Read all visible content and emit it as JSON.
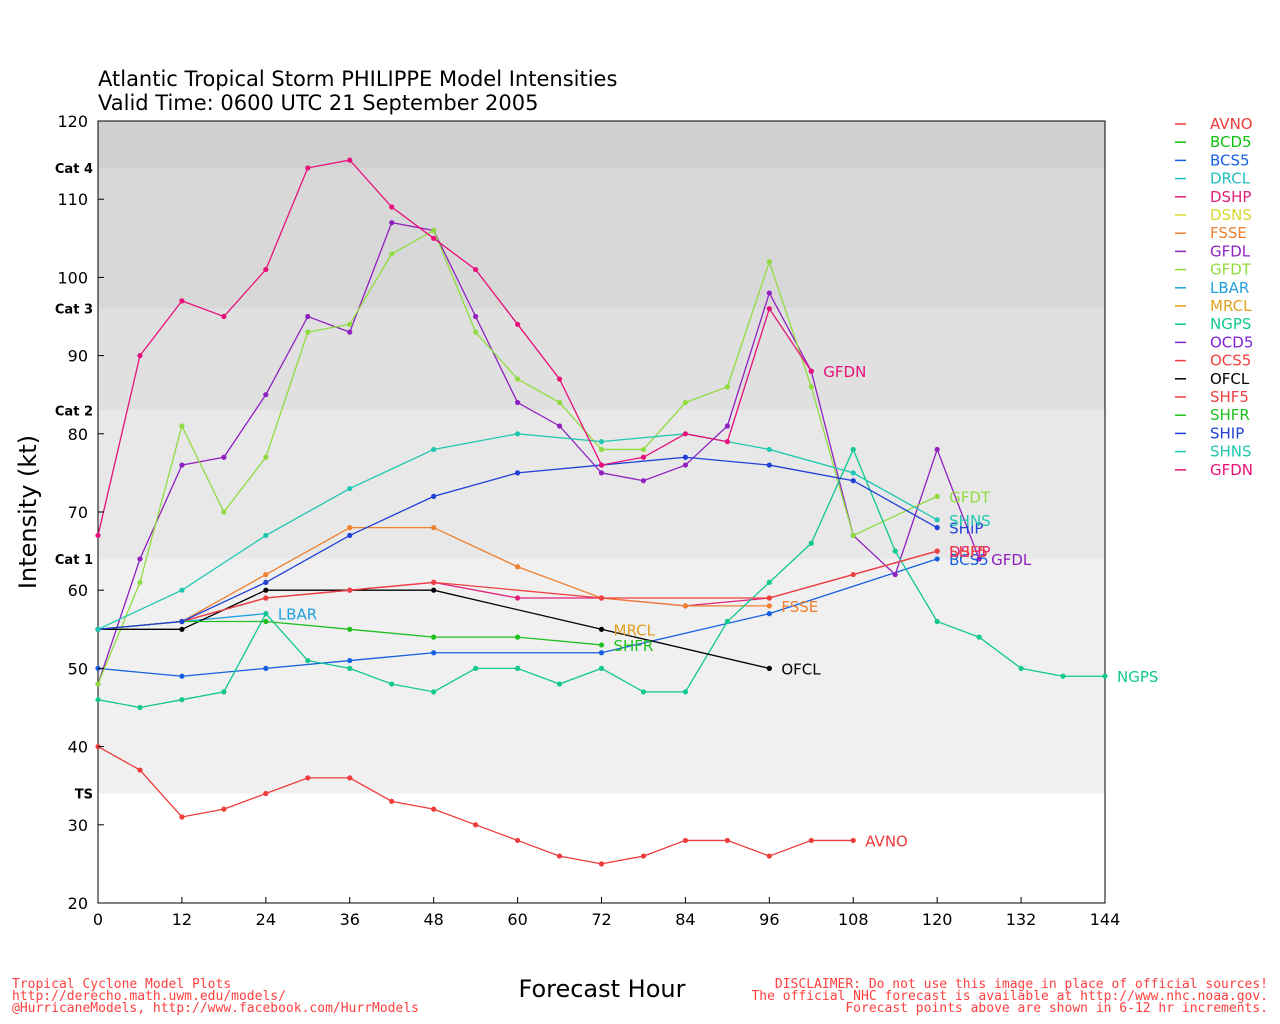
{
  "chart_data": {
    "type": "line",
    "title": "Atlantic Tropical Storm PHILIPPE Model Intensities",
    "subtitle": "Valid Time: 0600 UTC 21 September 2005",
    "xlabel": "Forecast Hour",
    "ylabel": "Intensity (kt)",
    "xlim": [
      0,
      144
    ],
    "ylim": [
      20,
      120
    ],
    "xticks": [
      "0",
      "12",
      "24",
      "36",
      "48",
      "60",
      "72",
      "84",
      "96",
      "108",
      "120",
      "132",
      "144"
    ],
    "yticks": [
      "20",
      "30",
      "40",
      "50",
      "60",
      "70",
      "80",
      "90",
      "100",
      "110",
      "120"
    ],
    "bands": [
      {
        "label": "TS",
        "from": 34,
        "to": 64,
        "color": "#f0f0f0"
      },
      {
        "label": "Cat 1",
        "from": 64,
        "to": 83,
        "color": "#e8e8e8"
      },
      {
        "label": "Cat 2",
        "from": 83,
        "to": 96,
        "color": "#e0e0e0"
      },
      {
        "label": "Cat 3",
        "from": 96,
        "to": 114,
        "color": "#d8d8d8"
      },
      {
        "label": "Cat 4",
        "from": 114,
        "to": 120,
        "color": "#d0d0d0"
      }
    ],
    "legend_position": "right",
    "series": [
      {
        "name": "AVNO",
        "color": "#ee3b3b",
        "end_label": "AVNO",
        "x": [
          0,
          6,
          12,
          18,
          24,
          30,
          36,
          42,
          48,
          54,
          60,
          66,
          72,
          78,
          84,
          90,
          96,
          102,
          108
        ],
        "y": [
          40,
          37,
          31,
          32,
          34,
          36,
          36,
          33,
          32,
          30,
          28,
          26,
          25,
          26,
          28,
          28,
          26,
          28,
          28
        ]
      },
      {
        "name": "BCD5",
        "color": "#10c010",
        "end_label": "",
        "x": [],
        "y": []
      },
      {
        "name": "BCS5",
        "color": "#1560e0",
        "end_label": "BCS5",
        "x": [
          0,
          12,
          24,
          36,
          48,
          72,
          96,
          120
        ],
        "y": [
          50,
          49,
          50,
          51,
          52,
          52,
          57,
          64
        ]
      },
      {
        "name": "DRCL",
        "color": "#20c0c0",
        "end_label": "",
        "x": [],
        "y": []
      },
      {
        "name": "DSHP",
        "color": "#e0207a",
        "end_label": "DSHP",
        "x": [
          0,
          12,
          24,
          36,
          48,
          60,
          72,
          84,
          96,
          120
        ],
        "y": [
          55,
          56,
          59,
          60,
          61,
          59,
          59,
          58,
          59,
          65
        ]
      },
      {
        "name": "DSNS",
        "color": "#d8d830",
        "end_label": "",
        "x": [],
        "y": []
      },
      {
        "name": "FSSE",
        "color": "#ee8030",
        "end_label": "FSSE",
        "x": [
          12,
          24,
          36,
          48,
          60,
          72,
          84,
          96
        ],
        "y": [
          56,
          62,
          68,
          68,
          63,
          59,
          58,
          58
        ]
      },
      {
        "name": "GFDL",
        "color": "#9020c0",
        "end_label": "GFDL",
        "x": [
          0,
          6,
          12,
          18,
          24,
          30,
          36,
          42,
          48,
          54,
          60,
          66,
          72,
          78,
          84,
          90,
          96,
          102,
          108,
          114,
          120,
          126
        ],
        "y": [
          48,
          64,
          76,
          77,
          85,
          95,
          93,
          107,
          106,
          95,
          84,
          81,
          75,
          74,
          76,
          81,
          98,
          88,
          67,
          62,
          78,
          64
        ]
      },
      {
        "name": "GFDT",
        "color": "#90dc40",
        "end_label": "GFDT",
        "x": [
          0,
          6,
          12,
          18,
          24,
          30,
          36,
          42,
          48,
          54,
          60,
          66,
          72,
          78,
          84,
          90,
          96,
          102,
          108,
          120
        ],
        "y": [
          48,
          61,
          81,
          70,
          77,
          93,
          94,
          103,
          106,
          93,
          87,
          84,
          78,
          78,
          84,
          86,
          102,
          86,
          67,
          72
        ]
      },
      {
        "name": "LBAR",
        "color": "#20a0e0",
        "end_label": "LBAR",
        "x": [
          0,
          12,
          24
        ],
        "y": [
          55,
          56,
          57
        ]
      },
      {
        "name": "MRCL",
        "color": "#e0a020",
        "end_label": "MRCL",
        "x": [
          72
        ],
        "y": [
          55
        ]
      },
      {
        "name": "NGPS",
        "color": "#10c890",
        "end_label": "NGPS",
        "x": [
          0,
          6,
          12,
          18,
          24,
          30,
          36,
          42,
          48,
          54,
          60,
          66,
          72,
          78,
          84,
          90,
          96,
          102,
          108,
          114,
          120,
          126,
          132,
          138,
          144
        ],
        "y": [
          46,
          45,
          46,
          47,
          57,
          51,
          50,
          48,
          47,
          50,
          50,
          48,
          50,
          47,
          47,
          56,
          61,
          66,
          78,
          65,
          56,
          54,
          50,
          49,
          49
        ]
      },
      {
        "name": "OCD5",
        "color": "#8020d0",
        "end_label": "",
        "x": [],
        "y": []
      },
      {
        "name": "OCS5",
        "color": "#ee4040",
        "end_label": "OCS5",
        "x": [],
        "y": []
      },
      {
        "name": "OFCL",
        "color": "#000000",
        "end_label": "OFCL",
        "x": [
          0,
          12,
          24,
          48,
          72,
          96
        ],
        "y": [
          55,
          55,
          60,
          60,
          55,
          50
        ]
      },
      {
        "name": "SHF5",
        "color": "#ee4040",
        "end_label": "SHF5",
        "x": [
          0,
          12,
          24,
          36,
          48,
          72,
          96,
          108,
          120
        ],
        "y": [
          55,
          56,
          59,
          60,
          61,
          59,
          59,
          62,
          65
        ]
      },
      {
        "name": "SHFR",
        "color": "#20c020",
        "end_label": "SHFR",
        "x": [
          0,
          12,
          24,
          36,
          48,
          60,
          72
        ],
        "y": [
          55,
          56,
          56,
          55,
          54,
          54,
          53
        ]
      },
      {
        "name": "SHIP",
        "color": "#2040d8",
        "end_label": "SHIP",
        "x": [
          0,
          12,
          24,
          36,
          48,
          60,
          72,
          84,
          96,
          108,
          120
        ],
        "y": [
          55,
          56,
          61,
          67,
          72,
          75,
          76,
          77,
          76,
          74,
          68
        ]
      },
      {
        "name": "SHNS",
        "color": "#20c8b0",
        "end_label": "SHNS",
        "x": [
          0,
          12,
          24,
          36,
          48,
          60,
          72,
          84,
          96,
          108,
          120
        ],
        "y": [
          55,
          60,
          67,
          73,
          78,
          80,
          79,
          80,
          78,
          75,
          69
        ]
      },
      {
        "name": "GFDN",
        "color": "#e8107a",
        "end_label": "GFDN",
        "x": [
          0,
          6,
          12,
          18,
          24,
          30,
          36,
          42,
          48,
          54,
          60,
          66,
          72,
          78,
          84,
          90,
          96,
          102
        ],
        "y": [
          67,
          90,
          97,
          95,
          101,
          114,
          115,
          109,
          105,
          101,
          94,
          87,
          76,
          77,
          80,
          79,
          96,
          88
        ]
      }
    ]
  },
  "footer": {
    "left_line1": "Tropical Cyclone Model Plots",
    "left_line2": "http://derecho.math.uwm.edu/models/",
    "left_line3": "@HurricaneModels, http://www.facebook.com/HurrModels",
    "right_line1": "DISCLAIMER: Do not use this image in place of official sources!",
    "right_line2": "The official NHC forecast is available at http://www.nhc.noaa.gov.",
    "right_line3": "Forecast points above are shown in 6-12 hr increments."
  }
}
